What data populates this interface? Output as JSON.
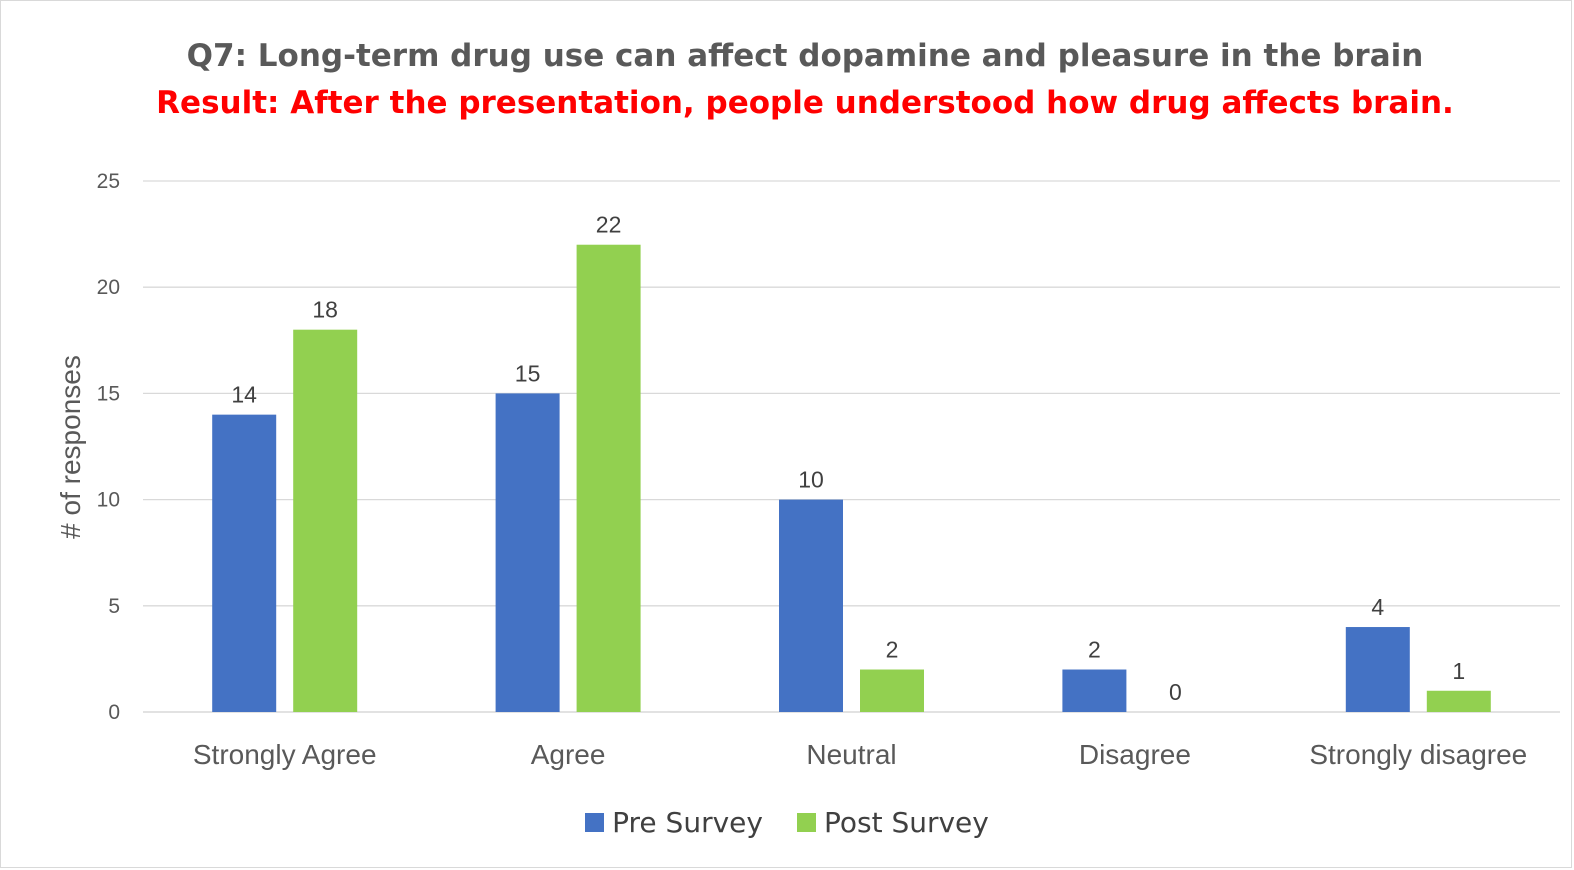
{
  "chart_data": {
    "type": "bar",
    "title": "Q7: Long-term drug use can affect dopamine and pleasure in the brain",
    "subtitle": "Result: After the presentation, people understood how drug affects brain.",
    "xlabel": "",
    "ylabel": "# of responses",
    "categories": [
      "Strongly Agree",
      "Agree",
      "Neutral",
      "Disagree",
      "Strongly disagree"
    ],
    "series": [
      {
        "name": "Pre Survey",
        "color": "#4472c4",
        "values": [
          14,
          15,
          10,
          2,
          4
        ]
      },
      {
        "name": "Post Survey",
        "color": "#92d050",
        "values": [
          18,
          22,
          2,
          0,
          1
        ]
      }
    ],
    "ylim": [
      0,
      25
    ],
    "yticks": [
      0,
      5,
      10,
      15,
      20,
      25
    ],
    "grid": true,
    "legend_position": "bottom",
    "data_labels": true
  }
}
